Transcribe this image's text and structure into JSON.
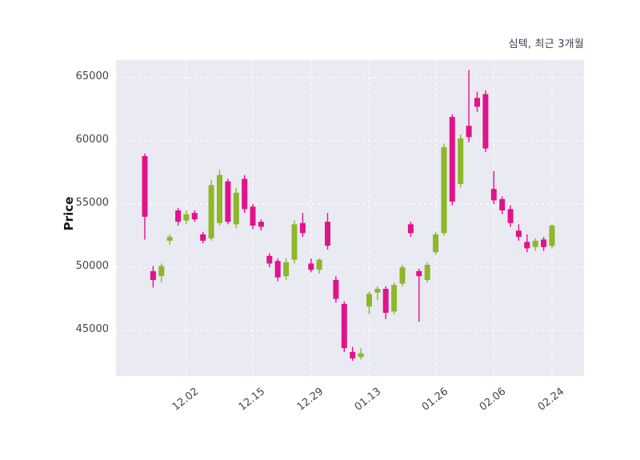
{
  "chart_data": {
    "type": "candlestick",
    "title": "심텍, 최근 3개월",
    "xlabel": "",
    "ylabel": "Price",
    "ylim": [
      41400,
      66400
    ],
    "yticks": [
      45000,
      50000,
      55000,
      60000,
      65000
    ],
    "grid": true,
    "legend": false,
    "colors": {
      "up": "#8cb829",
      "down": "#e0138a",
      "plot_bg": "#eaeaf2",
      "grid": "#ffffff",
      "tick_label": "#444444",
      "title": "#3a3f4d"
    },
    "xticks": [
      {
        "label": "12.02",
        "index": 5
      },
      {
        "label": "12.15",
        "index": 13
      },
      {
        "label": "12.29",
        "index": 20
      },
      {
        "label": "01.13",
        "index": 27
      },
      {
        "label": "01.26",
        "index": 35
      },
      {
        "label": "02.06",
        "index": 42
      },
      {
        "label": "02.24",
        "index": 49
      }
    ],
    "candles_format": [
      "open",
      "high",
      "low",
      "close"
    ],
    "candles": [
      [
        58800,
        59000,
        52200,
        54000
      ],
      [
        49700,
        50100,
        48400,
        49000
      ],
      [
        49300,
        50300,
        48800,
        50100
      ],
      [
        52100,
        52600,
        51800,
        52400
      ],
      [
        54500,
        54700,
        53300,
        53600
      ],
      [
        53700,
        54500,
        53400,
        54200
      ],
      [
        54300,
        54500,
        53600,
        53800
      ],
      [
        52600,
        52800,
        51900,
        52100
      ],
      [
        52300,
        56900,
        52100,
        56500
      ],
      [
        53500,
        57700,
        53300,
        57300
      ],
      [
        56800,
        57000,
        53400,
        53600
      ],
      [
        53400,
        56300,
        53100,
        55900
      ],
      [
        57000,
        57300,
        54300,
        54600
      ],
      [
        54800,
        55000,
        53000,
        53300
      ],
      [
        53600,
        53800,
        52900,
        53200
      ],
      [
        50900,
        51100,
        50000,
        50300
      ],
      [
        50500,
        50700,
        48900,
        49200
      ],
      [
        49300,
        50700,
        49000,
        50400
      ],
      [
        50600,
        53700,
        50300,
        53400
      ],
      [
        53500,
        54300,
        52400,
        52700
      ],
      [
        50300,
        50700,
        49600,
        49800
      ],
      [
        49800,
        50700,
        49500,
        50600
      ],
      [
        53600,
        54300,
        51400,
        51700
      ],
      [
        49000,
        49300,
        47200,
        47500
      ],
      [
        47100,
        47300,
        43300,
        43600
      ],
      [
        43300,
        43700,
        42600,
        42800
      ],
      [
        42900,
        43600,
        42700,
        43200
      ],
      [
        46900,
        48100,
        46300,
        47900
      ],
      [
        48000,
        48500,
        47400,
        48300
      ],
      [
        48300,
        48500,
        45900,
        46400
      ],
      [
        46500,
        48800,
        46300,
        48600
      ],
      [
        48700,
        50200,
        48500,
        50000
      ],
      [
        53400,
        53600,
        52400,
        52700
      ],
      [
        49700,
        49900,
        45700,
        49300
      ],
      [
        49000,
        50400,
        48800,
        50200
      ],
      [
        51200,
        52800,
        51000,
        52600
      ],
      [
        52700,
        59800,
        52500,
        59500
      ],
      [
        61900,
        62100,
        54900,
        55200
      ],
      [
        56600,
        60500,
        56300,
        60200
      ],
      [
        61200,
        65600,
        59900,
        60300
      ],
      [
        63400,
        63900,
        62300,
        62700
      ],
      [
        63700,
        64000,
        59100,
        59400
      ],
      [
        56200,
        57600,
        55000,
        55300
      ],
      [
        55400,
        55600,
        54200,
        54500
      ],
      [
        54600,
        54900,
        53200,
        53500
      ],
      [
        52900,
        53400,
        52100,
        52400
      ],
      [
        52000,
        52600,
        51200,
        51500
      ],
      [
        51600,
        52300,
        51300,
        52100
      ],
      [
        52200,
        52400,
        51300,
        51600
      ],
      [
        51700,
        53400,
        51500,
        53300
      ]
    ]
  }
}
